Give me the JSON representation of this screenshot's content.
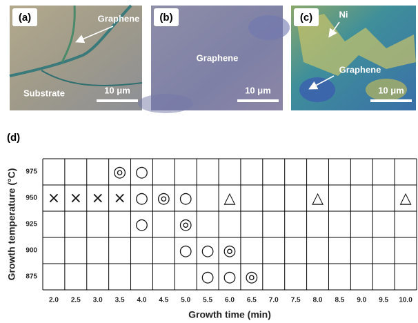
{
  "panels": [
    {
      "label": "(a)",
      "annotations": [
        "Graphene",
        "Substrate"
      ],
      "scale_bar": "10 μm"
    },
    {
      "label": "(b)",
      "annotations": [
        "Graphene"
      ],
      "scale_bar": "10 μm"
    },
    {
      "label": "(c)",
      "annotations": [
        "Ni",
        "Graphene"
      ],
      "scale_bar": "10 μm"
    }
  ],
  "grid": {
    "label": "(d)",
    "x_label": "Growth time (min)",
    "y_label": "Growth temperature (°C)",
    "columns": [
      "2.0",
      "2.5",
      "3.0",
      "3.5",
      "4.0",
      "4.5",
      "5.0",
      "5.5",
      "6.0",
      "6.5",
      "7.0",
      "7.5",
      "8.0",
      "8.5",
      "9.0",
      "9.5",
      "10.0"
    ],
    "rows": [
      {
        "label": "975",
        "cells": [
          null,
          null,
          null,
          "◎",
          "○",
          null,
          null,
          null,
          null,
          null,
          null,
          null,
          null,
          null,
          null,
          null,
          null
        ]
      },
      {
        "label": "950",
        "cells": [
          "×",
          "×",
          "×",
          "×",
          "○",
          "◎",
          "○",
          null,
          "△",
          null,
          null,
          null,
          "△",
          null,
          null,
          null,
          "△"
        ]
      },
      {
        "label": "925",
        "cells": [
          null,
          null,
          null,
          null,
          "○",
          null,
          "◎",
          null,
          null,
          null,
          null,
          null,
          null,
          null,
          null,
          null,
          null
        ]
      },
      {
        "label": "900",
        "cells": [
          null,
          null,
          null,
          null,
          null,
          null,
          "○",
          "○",
          "◎",
          null,
          null,
          null,
          null,
          null,
          null,
          null,
          null
        ]
      },
      {
        "label": "875",
        "cells": [
          null,
          null,
          null,
          null,
          null,
          null,
          null,
          "○",
          "○",
          "◎",
          null,
          null,
          null,
          null,
          null,
          null,
          null
        ]
      }
    ]
  }
}
